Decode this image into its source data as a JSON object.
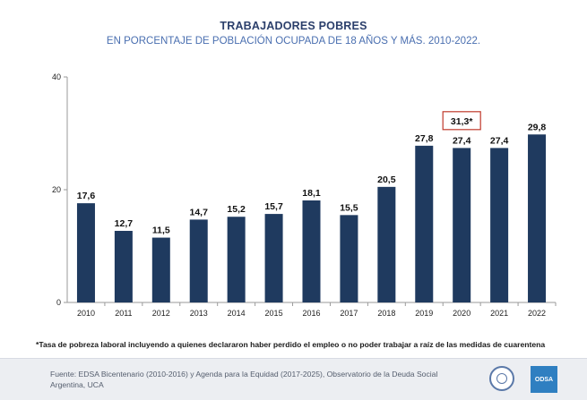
{
  "header": {
    "title": "TRABAJADORES POBRES",
    "subtitle": "EN PORCENTAJE DE POBLACIÓN OCUPADA DE 18 AÑOS Y MÁS. 2010-2022."
  },
  "chart_data": {
    "type": "bar",
    "categories": [
      "2010",
      "2011",
      "2012",
      "2013",
      "2014",
      "2015",
      "2016",
      "2017",
      "2018",
      "2019",
      "2020",
      "2021",
      "2022"
    ],
    "values": [
      17.6,
      12.7,
      11.5,
      14.7,
      15.2,
      15.7,
      18.1,
      15.5,
      20.5,
      27.8,
      27.4,
      27.4,
      29.8
    ],
    "value_labels": [
      "17,6",
      "12,7",
      "11,5",
      "14,7",
      "15,2",
      "15,7",
      "18,1",
      "15,5",
      "20,5",
      "27,8",
      "27,4",
      "27,4",
      "29,8"
    ],
    "ylim": [
      0,
      40
    ],
    "yticks": [
      0,
      20,
      40
    ],
    "annotation": {
      "category": "2020",
      "value": 31.3,
      "label": "31,3*"
    },
    "bar_color": "#1f3a5f",
    "annotation_border_color": "#c0392b",
    "grid": false
  },
  "footnote": "*Tasa de pobreza laboral incluyendo a quienes declararon haber perdido el empleo o no poder trabajar a raíz de las medidas de cuarentena",
  "footer": {
    "source_line1": "Fuente: EDSA Bicentenario (2010-2016) y Agenda para la Equidad (2017-2025), Observatorio de la Deuda Social",
    "source_line2": "Argentina, UCA",
    "logo_text": "ODSA"
  }
}
